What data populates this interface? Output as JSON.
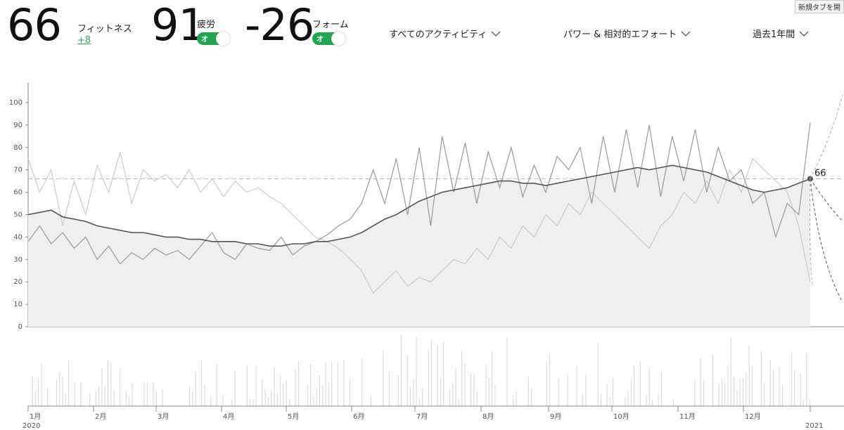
{
  "header": {
    "fitness": {
      "value": "66",
      "label": "フィットネス",
      "delta": "+8"
    },
    "fatigue": {
      "value": "91",
      "label": "疲労",
      "toggle": "オ"
    },
    "form": {
      "value": "-26",
      "label": "フォーム",
      "toggle": "オ"
    },
    "dropdowns": [
      {
        "label": "すべてのアクティビティ"
      },
      {
        "label": "パワー & 相対的エフォート"
      },
      {
        "label": "過去1年間"
      }
    ],
    "tooltip": "新規タブを開"
  },
  "chart_data": {
    "type": "line",
    "ylim": [
      0,
      100
    ],
    "yticks": [
      "0",
      "10",
      "20",
      "30",
      "40",
      "50",
      "60",
      "70",
      "80",
      "90",
      "100"
    ],
    "months": [
      "1月",
      "2月",
      "3月",
      "4月",
      "5月",
      "6月",
      "7月",
      "8月",
      "9月",
      "10月",
      "11月",
      "12月"
    ],
    "year_start": "2020",
    "year_end": "2021",
    "reference_value": 66,
    "end_label": "66",
    "series": [
      {
        "values": [
          50,
          51,
          52,
          49,
          48,
          47,
          45,
          44,
          43,
          42,
          42,
          41,
          40,
          40,
          39,
          39,
          38,
          38,
          38,
          37,
          37,
          36,
          36,
          37,
          37,
          38,
          38,
          39,
          40,
          42,
          45,
          48,
          50,
          53,
          56,
          58,
          60,
          61,
          62,
          63,
          64,
          65,
          65,
          64,
          64,
          63,
          64,
          65,
          66,
          67,
          68,
          69,
          70,
          71,
          70,
          71,
          72,
          71,
          70,
          69,
          67,
          65,
          63,
          61,
          60,
          61,
          62,
          64,
          66
        ],
        "color": "#555555"
      },
      {
        "values": [
          38,
          45,
          37,
          42,
          35,
          40,
          30,
          36,
          28,
          33,
          30,
          35,
          32,
          34,
          30,
          36,
          42,
          33,
          30,
          37,
          35,
          34,
          40,
          32,
          36,
          38,
          41,
          45,
          48,
          55,
          70,
          55,
          75,
          50,
          80,
          45,
          85,
          60,
          82,
          55,
          78,
          62,
          80,
          58,
          72,
          60,
          76,
          70,
          80,
          55,
          85,
          60,
          88,
          62,
          90,
          58,
          85,
          65,
          88,
          60,
          80,
          65,
          70,
          55,
          60,
          40,
          55,
          50,
          91
        ],
        "color": "#9a9a9a"
      },
      {
        "values": [
          75,
          60,
          70,
          45,
          65,
          50,
          72,
          60,
          78,
          55,
          70,
          65,
          68,
          62,
          70,
          60,
          66,
          58,
          65,
          60,
          62,
          58,
          55,
          50,
          45,
          40,
          38,
          35,
          30,
          25,
          15,
          20,
          25,
          18,
          22,
          20,
          25,
          30,
          28,
          35,
          30,
          40,
          35,
          45,
          40,
          50,
          45,
          55,
          50,
          60,
          55,
          50,
          45,
          40,
          35,
          45,
          50,
          60,
          55,
          65,
          55,
          70,
          60,
          75,
          70,
          65,
          60,
          45,
          20
        ],
        "color": "#cccccc"
      }
    ]
  }
}
